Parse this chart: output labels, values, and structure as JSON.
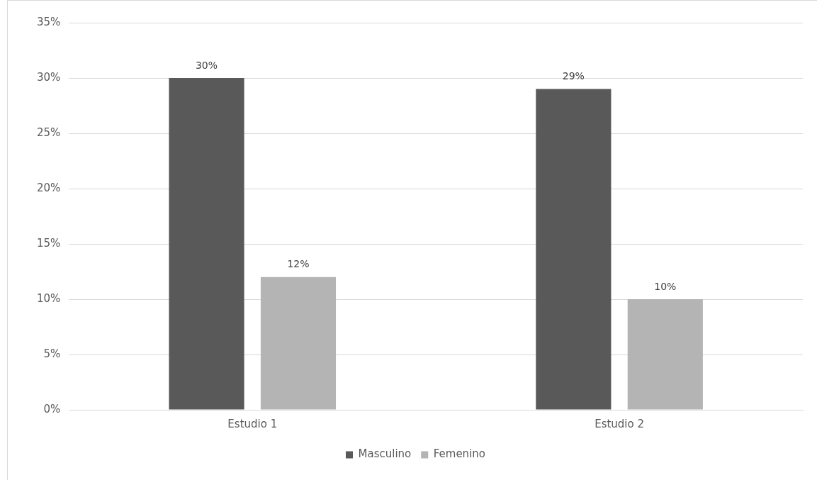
{
  "chart_data": {
    "type": "bar",
    "categories": [
      "Estudio 1",
      "Estudio 2"
    ],
    "series": [
      {
        "name": "Masculino",
        "color": "#595959",
        "values": [
          30,
          29
        ],
        "value_labels": [
          "30%",
          "29%"
        ]
      },
      {
        "name": "Femenino",
        "color": "#b4b4b4",
        "values": [
          12,
          10
        ],
        "value_labels": [
          "12%",
          "10%"
        ]
      }
    ],
    "ylim": [
      0,
      35
    ],
    "yticks": [
      {
        "value": 0,
        "label": "0%"
      },
      {
        "value": 5,
        "label": "5%"
      },
      {
        "value": 10,
        "label": "10%"
      },
      {
        "value": 15,
        "label": "15%"
      },
      {
        "value": 20,
        "label": "20%"
      },
      {
        "value": 25,
        "label": "25%"
      },
      {
        "value": 30,
        "label": "30%"
      },
      {
        "value": 35,
        "label": "35%"
      }
    ],
    "grid": "y",
    "legend": "bottom"
  }
}
